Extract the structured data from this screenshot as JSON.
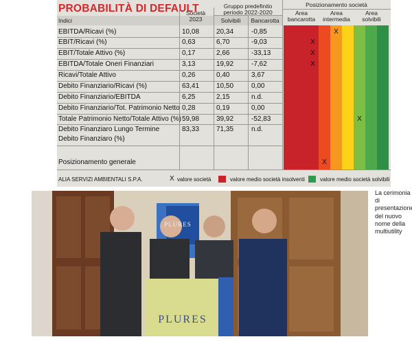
{
  "infographic": {
    "title": "PROBABILITÀ DI DEFAULT",
    "headers": {
      "indici": "Indici",
      "societa": [
        "Società",
        "2023"
      ],
      "gruppo": [
        "Gruppo predefinito",
        "periodo 2022-2020"
      ],
      "solvibili": "Solvibili",
      "bancarotta": "Bancarotta",
      "posizionamento": "Posizionamento società",
      "area_bancarotta": [
        "Area",
        "bancarotta"
      ],
      "area_intermedia": [
        "Area",
        "intermedia"
      ],
      "area_solvibili": [
        "Area",
        "solvibili"
      ]
    },
    "rows": [
      {
        "label": "EBITDA/Ricavi (%)",
        "societa": "10,08",
        "solvibili": "20,34",
        "bancarotta": "-0,85",
        "mark_col": 4
      },
      {
        "label": "EBIT/Ricavi (%)",
        "societa": "0,63",
        "solvibili": "6,70",
        "bancarotta": "-9,03",
        "mark_col": 2
      },
      {
        "label": "EBIT/Totale Attivo (%)",
        "societa": "0,17",
        "solvibili": "2,66",
        "bancarotta": "-33,13",
        "mark_col": 2
      },
      {
        "label": "EBITDA/Totale Oneri Finanziari",
        "societa": "3,13",
        "solvibili": "19,92",
        "bancarotta": "-7,62",
        "mark_col": 2
      },
      {
        "label": "Ricavi/Totale Attivo",
        "societa": "0,26",
        "solvibili": "0,40",
        "bancarotta": "3,67",
        "mark_col": null
      },
      {
        "label": "Debito Finanziario/Ricavi (%)",
        "societa": "63,41",
        "solvibili": "10,50",
        "bancarotta": "0,00",
        "mark_col": null
      },
      {
        "label": "Debito Finanziario/EBITDA",
        "societa": "6,25",
        "solvibili": "2,15",
        "bancarotta": "n.d.",
        "mark_col": null
      },
      {
        "label": "Debito Finanziario/Tot. Patrimonio Netto",
        "societa": "0,28",
        "solvibili": "0,19",
        "bancarotta": "0,00",
        "mark_col": null
      },
      {
        "label": "Totale Patrimonio Netto/Totale Attivo (%)",
        "societa": "59,98",
        "solvibili": "39,92",
        "bancarotta": "-52,83",
        "mark_col": 6
      },
      {
        "label": "Debito Finanziaro Lungo Termine",
        "label2": "Debito Finanziaro (%)",
        "societa": "83,33",
        "solvibili": "71,35",
        "bancarotta": "n.d.",
        "mark_col": null
      }
    ],
    "overall": {
      "label": "Posizionamento generale",
      "mark_col": 3
    },
    "mark_symbol": "X",
    "footer": {
      "company": "ALIA SERVIZI AMBIENTALI S.P.A.",
      "legend_x": "X",
      "legend_x_label": "valore società",
      "legend_red_label": "valore medio società insolventi",
      "legend_green_label": "valore medio società solvibili"
    },
    "colors": {
      "title": "#d6262b",
      "strips": [
        "#c8232b",
        "#c8232b",
        "#c8232b",
        "#ec4a20",
        "#f7971d",
        "#ffd21a",
        "#7cbf43",
        "#4ea84c",
        "#2f8f46"
      ]
    }
  },
  "photo": {
    "sign_text": "PLURES",
    "banner_text": "PLURES"
  },
  "caption": "La cerimonia di presentazione del nuovo nome della multiutility"
}
